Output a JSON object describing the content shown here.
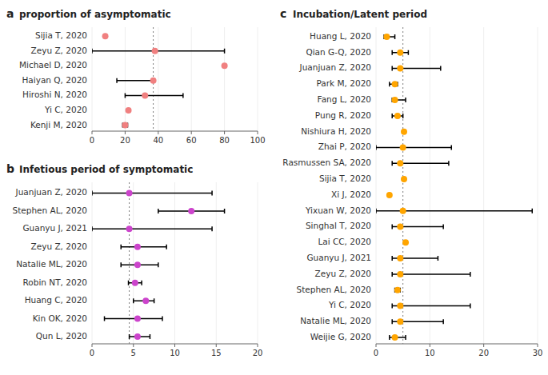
{
  "chart_data": [
    {
      "type": "forest",
      "orientation": "horizontal",
      "panel_label": "a",
      "title": "proportion of asymptomatic",
      "categories": [
        "Sijia T, 2020",
        "Zeyu Z, 2020",
        "Michael D, 2020",
        "Haiyan Q, 2020",
        "Hiroshi N, 2020",
        "Yi C, 2020",
        "Kenji M, 2020"
      ],
      "values": [
        8,
        38,
        80,
        37,
        32,
        22,
        20
      ],
      "error_low": [
        0,
        38,
        0,
        22,
        12,
        0,
        1.5
      ],
      "error_high": [
        0,
        42,
        0,
        0,
        23,
        0,
        1.5
      ],
      "color": "#F08080",
      "xlim": [
        0,
        100
      ],
      "xticks": [
        0,
        20,
        40,
        60,
        80,
        100
      ],
      "reference_x": 37
    },
    {
      "type": "forest",
      "orientation": "horizontal",
      "panel_label": "b",
      "title": "Infetious period of symptomatic",
      "categories": [
        "Juanjuan Z, 2020",
        "Stephen AL, 2020",
        "Guanyu J, 2021",
        "Zeyu Z, 2020",
        "Natalie ML, 2020",
        "Robin NT, 2020",
        "Huang C, 2020",
        "Kin OK, 2020",
        "Qun L, 2020"
      ],
      "values": [
        4.5,
        12,
        4.5,
        5.5,
        5.5,
        5.2,
        6.5,
        5.5,
        5.5
      ],
      "error_low": [
        4.5,
        4,
        4.5,
        2,
        2,
        0.8,
        1.5,
        4,
        1
      ],
      "error_high": [
        10,
        4,
        10,
        3.5,
        2.5,
        0.8,
        1,
        3,
        1.5
      ],
      "color": "#CC44CC",
      "xlim": [
        0,
        20
      ],
      "xticks": [
        0,
        5,
        10,
        15,
        20
      ],
      "reference_x": 4.5
    },
    {
      "type": "forest",
      "orientation": "horizontal",
      "panel_label": "c",
      "title": "Incubation/Latent period",
      "categories": [
        "Huang L, 2020",
        "Qian G-Q, 2020",
        "Juanjuan Z, 2020",
        "Park M, 2020",
        "Fang L, 2020",
        "Pung R, 2020",
        "Nishiura H, 2020",
        "Zhai P, 2020",
        "Rasmussen SA, 2020",
        "Sijia T, 2020",
        "Xi J, 2020",
        "Yixuan W, 2020",
        "Singhal T, 2020",
        "Lai CC, 2020",
        "Guanyu J, 2021",
        "Zeyu Z, 2020",
        "Stephen AL, 2020",
        "Yi C, 2020",
        "Natalie ML, 2020",
        "Weijie G, 2020"
      ],
      "values": [
        2.0,
        4.5,
        4.5,
        3.5,
        3.5,
        4.0,
        5.2,
        5.0,
        4.5,
        5.2,
        2.5,
        5.0,
        4.5,
        5.5,
        4.5,
        4.5,
        4.0,
        4.5,
        4.5,
        3.5
      ],
      "error_low": [
        0.5,
        1.5,
        1.5,
        1.0,
        0.5,
        1.0,
        0,
        5.0,
        1.5,
        0,
        0,
        5.0,
        1.5,
        0,
        1.5,
        1.5,
        0.5,
        1.5,
        1.5,
        1.0
      ],
      "error_high": [
        1.5,
        1.5,
        7.5,
        0.5,
        2.0,
        1.0,
        0,
        9.0,
        9.0,
        0,
        0,
        24.0,
        8.0,
        0,
        7.0,
        13.0,
        0.5,
        13.0,
        8.0,
        2.0
      ],
      "color": "#FFA500",
      "xlim": [
        0,
        30
      ],
      "xticks": [
        0,
        10,
        20,
        30
      ],
      "reference_x": 5.0
    }
  ]
}
